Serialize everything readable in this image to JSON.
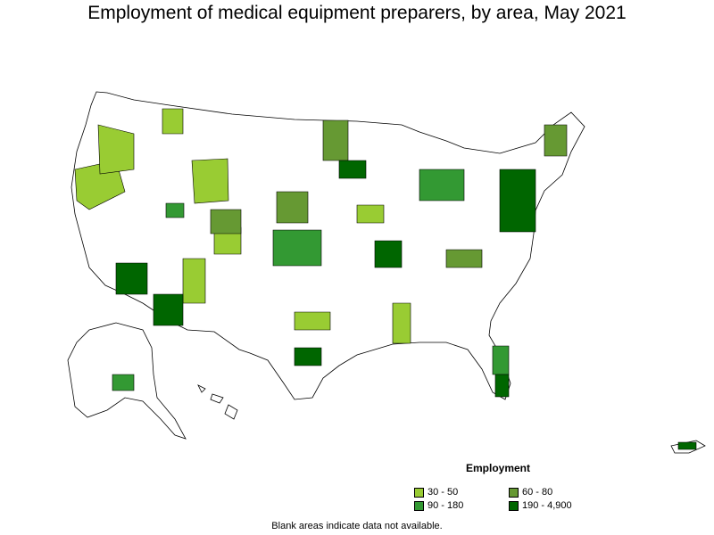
{
  "title": "Employment of medical equipment preparers, by area, May 2021",
  "legend": {
    "title": "Employment",
    "items": [
      {
        "label": "30 - 50",
        "color": "#99cc33"
      },
      {
        "label": "60 - 80",
        "color": "#669933"
      },
      {
        "label": "90 - 180",
        "color": "#339933"
      },
      {
        "label": "190 - 4,900",
        "color": "#006600"
      }
    ]
  },
  "note": "Blank areas indicate data not available."
}
